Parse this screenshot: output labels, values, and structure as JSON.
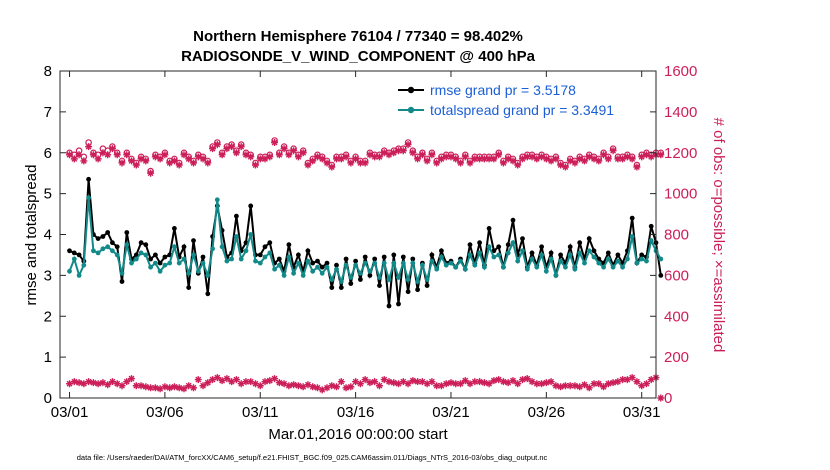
{
  "chart_data": {
    "type": "line",
    "title": "Northern Hemisphere 76104 / 77340 = 98.402%",
    "subtitle": "RADIOSONDE_V_WIND_COMPONENT @ 400 hPa",
    "xlabel": "Mar.01,2016 00:00:00 start",
    "ylabel": "rmse and totalspread",
    "ylabel_right": "# of obs: o=possible; ×=assimilated",
    "note": "data file: /Users/raeder/DAI/ATM_forcXX/CAM6_setup/f.e21.FHIST_BGC.f09_025.CAM6assim.011/Diags_NTrS_2016-03/obs_diag_output.nc",
    "xlim": [
      0.5,
      31.75
    ],
    "ylim": [
      0,
      8
    ],
    "ylim_right": [
      0,
      1600
    ],
    "x_ticks": [
      1,
      6,
      11,
      16,
      21,
      26,
      31
    ],
    "x_tick_labels": [
      "03/01",
      "03/06",
      "03/11",
      "03/16",
      "03/21",
      "03/26",
      "03/31"
    ],
    "y_ticks": [
      0,
      1,
      2,
      3,
      4,
      5,
      6,
      7,
      8
    ],
    "y_ticks_right": [
      0,
      200,
      400,
      600,
      800,
      1000,
      1200,
      1400,
      1600
    ],
    "legend": [
      "rmse grand pr = 3.5178",
      "totalspread grand pr = 3.3491"
    ],
    "colors": {
      "rmse": "#000000",
      "spread": "#138a8a",
      "obs": "#cc1f5a",
      "legend_text": "#1a5fd6"
    },
    "series": [
      {
        "name": "rmse",
        "x_start": 1,
        "x_step": 0.25,
        "values": [
          3.6,
          3.55,
          3.5,
          3.35,
          5.35,
          4.0,
          3.9,
          3.95,
          4.05,
          3.8,
          3.7,
          2.85,
          4.05,
          3.4,
          3.5,
          3.8,
          3.75,
          3.4,
          3.5,
          3.3,
          3.45,
          3.5,
          4.15,
          3.45,
          3.7,
          2.7,
          3.85,
          3.05,
          3.45,
          2.55,
          3.95,
          4.7,
          4.1,
          3.45,
          3.55,
          4.45,
          3.6,
          3.8,
          4.7,
          3.5,
          3.5,
          3.7,
          3.8,
          3.3,
          3.4,
          3.1,
          3.75,
          3.2,
          3.5,
          3.1,
          3.6,
          3.3,
          3.35,
          3.2,
          3.3,
          2.7,
          3.25,
          2.7,
          3.4,
          2.8,
          3.35,
          2.9,
          3.45,
          3.0,
          3.4,
          2.75,
          3.45,
          2.25,
          3.5,
          2.3,
          3.45,
          2.6,
          3.4,
          2.65,
          3.3,
          2.75,
          3.5,
          3.2,
          3.6,
          3.3,
          3.35,
          3.2,
          3.4,
          3.15,
          3.75,
          3.3,
          3.8,
          3.25,
          4.15,
          3.6,
          3.7,
          3.2,
          3.75,
          4.35,
          3.5,
          3.9,
          3.2,
          3.55,
          3.25,
          3.7,
          3.2,
          3.55,
          3.0,
          3.5,
          3.3,
          3.7,
          3.2,
          3.8,
          3.4,
          3.9,
          3.6,
          3.4,
          3.3,
          3.55,
          3.25,
          3.5,
          3.3,
          3.6,
          4.4,
          3.3,
          3.5,
          3.45,
          4.2,
          3.8,
          3.0
        ]
      },
      {
        "name": "totalspread",
        "x_start": 1,
        "x_step": 0.25,
        "values": [
          3.1,
          3.4,
          3.0,
          3.25,
          4.9,
          3.6,
          3.55,
          3.65,
          3.7,
          3.6,
          3.5,
          3.05,
          3.75,
          3.3,
          3.4,
          3.55,
          3.5,
          3.2,
          3.3,
          3.1,
          3.25,
          3.3,
          3.7,
          3.3,
          3.4,
          3.05,
          3.5,
          3.1,
          3.3,
          3.0,
          3.65,
          4.85,
          3.7,
          3.35,
          3.4,
          3.95,
          3.4,
          3.6,
          4.0,
          3.35,
          3.3,
          3.45,
          3.55,
          3.15,
          3.25,
          3.0,
          3.45,
          3.05,
          3.3,
          3.0,
          3.35,
          3.1,
          3.2,
          3.05,
          3.2,
          2.9,
          3.15,
          2.85,
          3.25,
          2.95,
          3.25,
          3.05,
          3.3,
          3.1,
          3.3,
          2.95,
          3.3,
          2.9,
          3.3,
          2.95,
          3.3,
          2.9,
          3.3,
          2.85,
          3.25,
          2.9,
          3.35,
          3.15,
          3.45,
          3.25,
          3.3,
          3.2,
          3.35,
          3.15,
          3.5,
          3.25,
          3.55,
          3.2,
          3.7,
          3.45,
          3.5,
          3.2,
          3.55,
          3.8,
          3.35,
          3.6,
          3.15,
          3.4,
          3.2,
          3.5,
          3.1,
          3.4,
          3.0,
          3.35,
          3.2,
          3.5,
          3.15,
          3.55,
          3.3,
          3.6,
          3.45,
          3.3,
          3.2,
          3.4,
          3.2,
          3.35,
          3.2,
          3.4,
          3.95,
          3.3,
          3.4,
          3.35,
          3.85,
          3.6,
          3.4
        ]
      },
      {
        "name": "obs_possible",
        "axis": "right",
        "x_start": 1,
        "x_step": 0.25,
        "values": [
          1200,
          1190,
          1210,
          1180,
          1250,
          1200,
          1190,
          1220,
          1210,
          1230,
          1200,
          1160,
          1200,
          1170,
          1150,
          1180,
          1170,
          1110,
          1190,
          1180,
          1200,
          1160,
          1170,
          1150,
          1200,
          1180,
          1160,
          1190,
          1180,
          1160,
          1230,
          1250,
          1200,
          1230,
          1240,
          1210,
          1240,
          1200,
          1190,
          1150,
          1180,
          1180,
          1190,
          1260,
          1200,
          1230,
          1200,
          1220,
          1190,
          1210,
          1150,
          1170,
          1190,
          1180,
          1160,
          1140,
          1180,
          1180,
          1190,
          1160,
          1180,
          1160,
          1160,
          1200,
          1190,
          1190,
          1210,
          1200,
          1210,
          1220,
          1220,
          1250,
          1210,
          1180,
          1200,
          1170,
          1200,
          1160,
          1180,
          1190,
          1190,
          1180,
          1160,
          1190,
          1160,
          1180,
          1180,
          1180,
          1180,
          1180,
          1200,
          1160,
          1180,
          1170,
          1150,
          1180,
          1190,
          1190,
          1180,
          1190,
          1180,
          1170,
          1180,
          1150,
          1140,
          1170,
          1160,
          1180,
          1170,
          1190,
          1180,
          1170,
          1200,
          1180,
          1220,
          1180,
          1180,
          1190,
          1180,
          1140,
          1190,
          1200,
          1190,
          1200,
          1200
        ]
      },
      {
        "name": "obs_assimilated",
        "axis": "right",
        "x_start": 1,
        "x_step": 0.25,
        "values": [
          1190,
          1170,
          1190,
          1160,
          1230,
          1190,
          1170,
          1200,
          1190,
          1220,
          1190,
          1150,
          1190,
          1160,
          1140,
          1170,
          1160,
          1100,
          1180,
          1170,
          1190,
          1150,
          1160,
          1140,
          1190,
          1170,
          1150,
          1180,
          1170,
          1150,
          1220,
          1240,
          1190,
          1220,
          1230,
          1200,
          1230,
          1190,
          1180,
          1140,
          1170,
          1170,
          1180,
          1250,
          1190,
          1220,
          1190,
          1210,
          1180,
          1200,
          1140,
          1160,
          1180,
          1170,
          1150,
          1130,
          1170,
          1170,
          1180,
          1150,
          1170,
          1150,
          1150,
          1190,
          1180,
          1180,
          1200,
          1190,
          1200,
          1210,
          1210,
          1240,
          1200,
          1170,
          1190,
          1160,
          1190,
          1150,
          1170,
          1180,
          1180,
          1170,
          1150,
          1180,
          1150,
          1170,
          1170,
          1170,
          1170,
          1170,
          1190,
          1150,
          1170,
          1160,
          1140,
          1170,
          1180,
          1180,
          1170,
          1180,
          1170,
          1160,
          1170,
          1140,
          1130,
          1160,
          1150,
          1170,
          1160,
          1180,
          1170,
          1160,
          1190,
          1170,
          1210,
          1170,
          1170,
          1180,
          1170,
          1130,
          1180,
          1190,
          1180,
          1190,
          1190
        ]
      },
      {
        "name": "obs_possible_low",
        "axis": "right",
        "x_start": 1,
        "x_step": 0.25,
        "values": [
          70,
          80,
          75,
          70,
          80,
          75,
          70,
          75,
          65,
          80,
          70,
          60,
          80,
          95,
          60,
          60,
          55,
          50,
          50,
          45,
          55,
          50,
          55,
          50,
          45,
          60,
          50,
          90,
          60,
          75,
          90,
          100,
          85,
          95,
          80,
          90,
          70,
          80,
          80,
          70,
          60,
          80,
          85,
          95,
          75,
          70,
          60,
          65,
          60,
          55,
          65,
          55,
          50,
          40,
          50,
          60,
          55,
          80,
          50,
          55,
          80,
          70,
          90,
          75,
          80,
          60,
          90,
          80,
          75,
          70,
          80,
          70,
          85,
          80,
          80,
          70,
          80,
          60,
          60,
          70,
          75,
          70,
          70,
          85,
          70,
          80,
          80,
          75,
          70,
          85,
          90,
          80,
          75,
          85,
          70,
          90,
          95,
          80,
          70,
          70,
          75,
          80,
          60,
          55,
          60,
          60,
          60,
          55,
          65,
          50,
          70,
          70,
          55,
          70,
          75,
          80,
          90,
          90,
          100,
          80,
          60,
          70,
          90,
          100,
          0
        ]
      }
    ]
  }
}
